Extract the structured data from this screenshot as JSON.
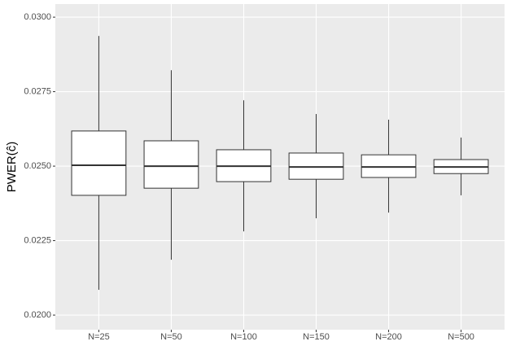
{
  "chart_data": {
    "type": "box",
    "y_label": "PWER(ĉ)",
    "categories": [
      "N=25",
      "N=50",
      "N=100",
      "N=150",
      "N=200",
      "N=500"
    ],
    "min": [
      0.02085,
      0.02186,
      0.02281,
      0.02325,
      0.02344,
      0.02402
    ],
    "q1": [
      0.02402,
      0.02426,
      0.02448,
      0.02456,
      0.02462,
      0.02475
    ],
    "median": [
      0.02503,
      0.025,
      0.025,
      0.02497,
      0.02497,
      0.02497
    ],
    "q3": [
      0.02618,
      0.02585,
      0.02555,
      0.02544,
      0.02538,
      0.02522
    ],
    "max": [
      0.02937,
      0.02822,
      0.02721,
      0.02675,
      0.02656,
      0.02596
    ],
    "ylim": [
      0.01951,
      0.03044
    ],
    "yticks": [
      {
        "value": 0.02,
        "label": "0.0200"
      },
      0.0225,
      {
        "value": 0.025,
        "label": "0.0250"
      },
      0.0275,
      {
        "value": 0.03,
        "label": "0.0300"
      }
    ],
    "grid": true,
    "box_color": "#ffffff",
    "line_color": "#333333",
    "panel_color": "#ebebeb"
  }
}
